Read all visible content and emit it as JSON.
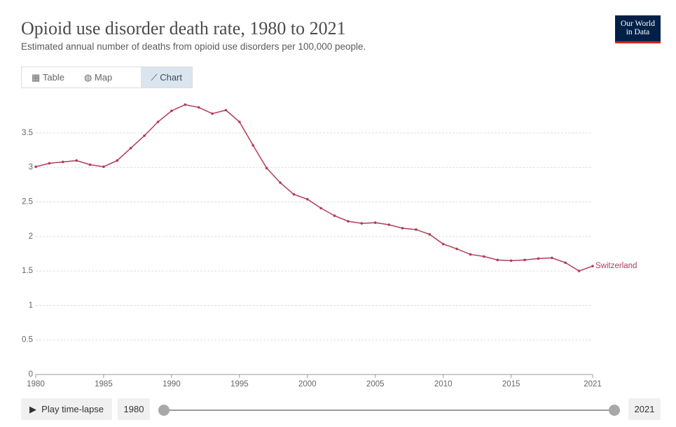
{
  "header": {
    "title": "Opioid use disorder death rate, 1980 to 2021",
    "subtitle": "Estimated annual number of deaths from opioid use disorders per 100,000 people.",
    "logo": [
      "Our World",
      "in Data"
    ]
  },
  "tabs": [
    "Table",
    "Map",
    "Chart"
  ],
  "chart_data": {
    "type": "line",
    "x": [
      1980,
      1981,
      1982,
      1983,
      1984,
      1985,
      1986,
      1987,
      1988,
      1989,
      1990,
      1991,
      1992,
      1993,
      1994,
      1995,
      1996,
      1997,
      1998,
      1999,
      2000,
      2001,
      2002,
      2003,
      2004,
      2005,
      2006,
      2007,
      2008,
      2009,
      2010,
      2011,
      2012,
      2013,
      2014,
      2015,
      2016,
      2017,
      2018,
      2019,
      2020,
      2021
    ],
    "series": [
      {
        "name": "Switzerland",
        "color": "#b13d59",
        "values": [
          3.01,
          3.06,
          3.08,
          3.1,
          3.04,
          3.01,
          3.1,
          3.28,
          3.46,
          3.66,
          3.82,
          3.91,
          3.87,
          3.78,
          3.83,
          3.66,
          3.32,
          2.99,
          2.78,
          2.61,
          2.54,
          2.41,
          2.3,
          2.22,
          2.19,
          2.2,
          2.17,
          2.12,
          2.1,
          2.03,
          1.89,
          1.82,
          1.74,
          1.71,
          1.66,
          1.65,
          1.66,
          1.68,
          1.69,
          1.62,
          1.5,
          1.57
        ]
      }
    ],
    "xlim": [
      1980,
      2021
    ],
    "xticks": [
      1980,
      1985,
      1990,
      1995,
      2000,
      2005,
      2010,
      2015,
      2021
    ],
    "ylim": [
      0,
      3.92
    ],
    "yticks": [
      0,
      0.5,
      1,
      1.5,
      2,
      2.5,
      3,
      3.5
    ],
    "grid": true
  },
  "timeline": {
    "play": "Play time-lapse",
    "start": "1980",
    "end": "2021"
  }
}
